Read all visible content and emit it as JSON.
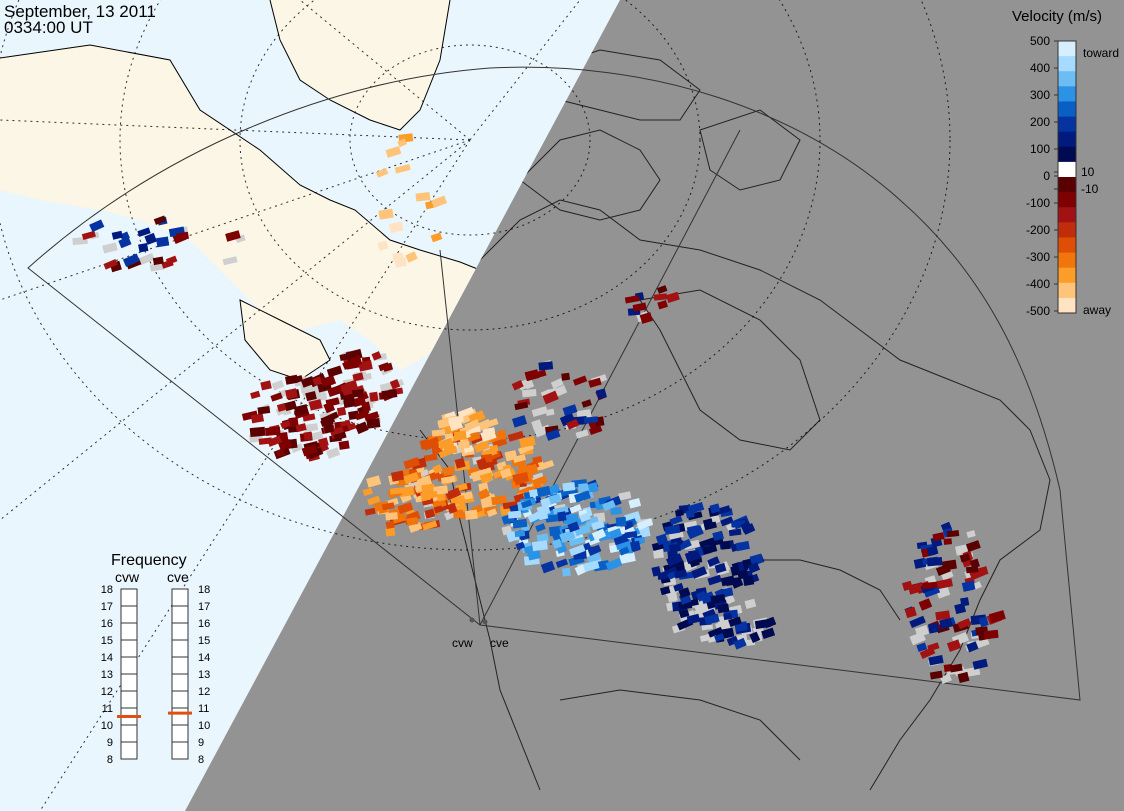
{
  "header": {
    "date": "September, 13 2011",
    "time": "0334:00 UT"
  },
  "colors": {
    "day_side": "#eaf6fd",
    "night_side": "#939393",
    "land_day": "#fbf6e6",
    "ground_scatter": "#cfcfcf"
  },
  "radars": [
    {
      "label": "cvw"
    },
    {
      "label": "cve"
    }
  ],
  "velocity_legend": {
    "title": "Velocity (m/s)",
    "toward_label": "toward",
    "away_label": "away",
    "ticks": [
      "500",
      "400",
      "300",
      "200",
      "100",
      "10",
      "0",
      "-10",
      "-100",
      "-200",
      "-300",
      "-400",
      "-500"
    ],
    "colors_top_to_bottom": [
      "#d6efff",
      "#a6dbff",
      "#6cbdf4",
      "#2b92e6",
      "#0a5fc4",
      "#0533a2",
      "#001a7e",
      "#000a50",
      "#ffffff",
      "#5a0000",
      "#7f0000",
      "#a31212",
      "#c02d0a",
      "#df4e05",
      "#f0750c",
      "#fb9d28",
      "#ffc47a",
      "#ffe3c2"
    ]
  },
  "frequency_panel": {
    "title": "Frequency",
    "left_label": "cvw",
    "right_label": "cve",
    "scale": [
      "18",
      "17",
      "16",
      "15",
      "14",
      "13",
      "12",
      "11",
      "10",
      "9",
      "8"
    ],
    "cvw_mhz": 10.5,
    "cve_mhz": 10.7,
    "marker_color": "#e05010"
  }
}
